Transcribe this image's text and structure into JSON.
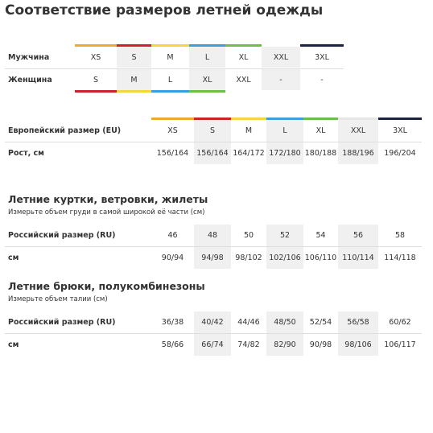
{
  "title": "Соответствие размеров летней одежды",
  "table1": {
    "rows": [
      {
        "label": "Мужчина",
        "cells": [
          "XS",
          "S",
          "M",
          "L",
          "XL",
          "XXL",
          "3XL"
        ]
      },
      {
        "label": "Женщина",
        "cells": [
          "S",
          "M",
          "L",
          "XL",
          "XXL",
          "-",
          "-"
        ]
      }
    ]
  },
  "table2": {
    "rows": [
      {
        "label": "Европейский размер (EU)",
        "cells": [
          "XS",
          "S",
          "M",
          "L",
          "XL",
          "XXL",
          "3XL"
        ]
      },
      {
        "label": "Рост, см",
        "cells": [
          "156/164",
          "156/164",
          "164/172",
          "172/180",
          "180/188",
          "188/196",
          "196/204"
        ]
      }
    ]
  },
  "sections": [
    {
      "heading": "Летние куртки, ветровки, жилеты",
      "note": "Измерьте объем груди в самой широкой её части (см)",
      "rows": [
        {
          "label": "Российский размер (RU)",
          "cells": [
            "46",
            "48",
            "50",
            "52",
            "54",
            "56",
            "58"
          ]
        },
        {
          "label": "см",
          "cells": [
            "90/94",
            "94/98",
            "98/102",
            "102/106",
            "106/110",
            "110/114",
            "114/118"
          ]
        }
      ]
    },
    {
      "heading": "Летние брюки, полукомбинезоны",
      "note": "Измерьте объем талии (см)",
      "rows": [
        {
          "label": "Российский размер (RU)",
          "cells": [
            "36/38",
            "40/42",
            "44/46",
            "48/50",
            "52/54",
            "56/58",
            "60/62"
          ]
        },
        {
          "label": "см",
          "cells": [
            "58/66",
            "66/74",
            "74/82",
            "82/90",
            "90/98",
            "98/106",
            "106/117"
          ]
        }
      ]
    }
  ]
}
